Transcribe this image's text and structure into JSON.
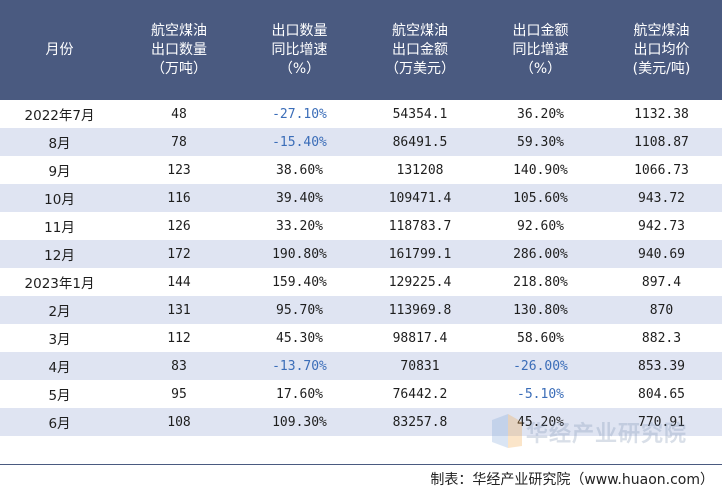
{
  "table": {
    "headers": [
      "月份",
      "航空煤油\n出口数量\n（万吨）",
      "出口数量\n同比增速\n（%）",
      "航空煤油\n出口金额\n（万美元）",
      "出口金额\n同比增速\n（%）",
      "航空煤油\n出口均价\n(美元/吨)"
    ],
    "rows": [
      [
        "2022年7月",
        "48",
        "-27.10%",
        "54354.1",
        "36.20%",
        "1132.38"
      ],
      [
        "8月",
        "78",
        "-15.40%",
        "86491.5",
        "59.30%",
        "1108.87"
      ],
      [
        "9月",
        "123",
        "38.60%",
        "131208",
        "140.90%",
        "1066.73"
      ],
      [
        "10月",
        "116",
        "39.40%",
        "109471.4",
        "105.60%",
        "943.72"
      ],
      [
        "11月",
        "126",
        "33.20%",
        "118783.7",
        "92.60%",
        "942.73"
      ],
      [
        "12月",
        "172",
        "190.80%",
        "161799.1",
        "286.00%",
        "940.69"
      ],
      [
        "2023年1月",
        "144",
        "159.40%",
        "129225.4",
        "218.80%",
        "897.4"
      ],
      [
        "2月",
        "131",
        "95.70%",
        "113969.8",
        "130.80%",
        "870"
      ],
      [
        "3月",
        "112",
        "45.30%",
        "98817.4",
        "58.60%",
        "882.3"
      ],
      [
        "4月",
        "83",
        "-13.70%",
        "70831",
        "-26.00%",
        "853.39"
      ],
      [
        "5月",
        "95",
        "17.60%",
        "76442.2",
        "-5.10%",
        "804.65"
      ],
      [
        "6月",
        "108",
        "109.30%",
        "83257.8",
        "45.20%",
        "770.91"
      ]
    ]
  },
  "watermark": {
    "text": "华经产业研究院"
  },
  "footer": {
    "source": "制表：华经产业研究院（www.huaon.com）"
  },
  "colors": {
    "header_bg": "#4a5a80",
    "stripe": "#dfe4f2",
    "negative": "#3b6db8"
  }
}
